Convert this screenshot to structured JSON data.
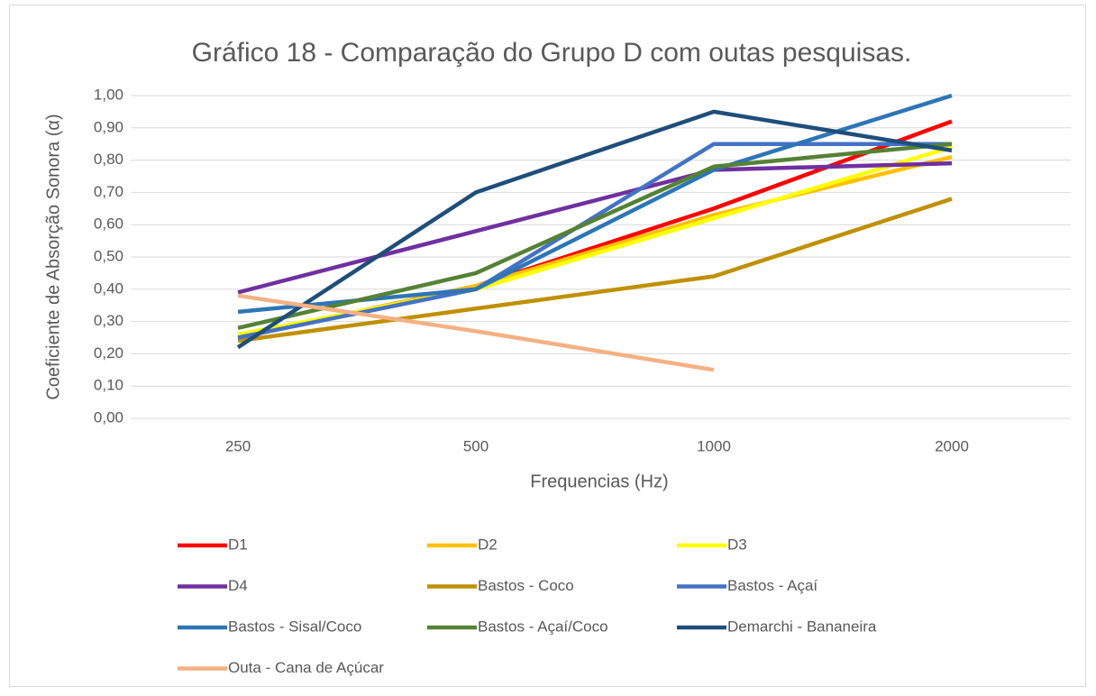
{
  "chart_data": {
    "type": "line",
    "title": "Gráfico 18 - Comparação do Grupo D com outas pesquisas.",
    "x_label": "Frequencias (Hz)",
    "y_label": "Coeficiente de Absorção Sonora (α)",
    "categories": [
      "250",
      "500",
      "1000",
      "2000"
    ],
    "series": [
      {
        "name": "D1",
        "color": "#ff0000",
        "values": [
          0.25,
          0.41,
          0.65,
          0.92
        ]
      },
      {
        "name": "D2",
        "color": "#ffc000",
        "values": [
          0.25,
          0.41,
          0.63,
          0.81
        ]
      },
      {
        "name": "D3",
        "color": "#ffff00",
        "values": [
          0.26,
          0.4,
          0.62,
          0.84
        ]
      },
      {
        "name": "D4",
        "color": "#7030a0",
        "values": [
          0.39,
          0.58,
          0.77,
          0.79
        ]
      },
      {
        "name": "Bastos - Coco",
        "color": "#bf9000",
        "values": [
          0.24,
          0.34,
          0.44,
          0.68
        ]
      },
      {
        "name": "Bastos - Açaí",
        "color": "#4472c4",
        "values": [
          0.25,
          0.4,
          0.85,
          0.85
        ]
      },
      {
        "name": "Bastos - Sisal/Coco",
        "color": "#2e75b6",
        "values": [
          0.33,
          0.4,
          0.77,
          1.0
        ]
      },
      {
        "name": "Bastos - Açaí/Coco",
        "color": "#548235",
        "values": [
          0.28,
          0.45,
          0.78,
          0.85
        ]
      },
      {
        "name": "Demarchi - Bananeira",
        "color": "#1f4e79",
        "values": [
          0.22,
          0.7,
          0.95,
          0.83
        ]
      },
      {
        "name": "Outa - Cana de Açúcar",
        "color": "#f4b183",
        "values": [
          0.38,
          0.27,
          0.15,
          null
        ]
      }
    ],
    "ylim": [
      0,
      1
    ],
    "yticks": [
      {
        "value": 0,
        "label": "0,00"
      },
      {
        "value": 0.1,
        "label": "0,10"
      },
      {
        "value": 0.2,
        "label": "0,20"
      },
      {
        "value": 0.3,
        "label": "0,30"
      },
      {
        "value": 0.4,
        "label": "0,40"
      },
      {
        "value": 0.5,
        "label": "0,50"
      },
      {
        "value": 0.6,
        "label": "0,60"
      },
      {
        "value": 0.7,
        "label": "0,70"
      },
      {
        "value": 0.8,
        "label": "0,80"
      },
      {
        "value": 0.9,
        "label": "0,90"
      },
      {
        "value": 1,
        "label": "1,00"
      }
    ],
    "grid": true,
    "legend": "bottom"
  }
}
